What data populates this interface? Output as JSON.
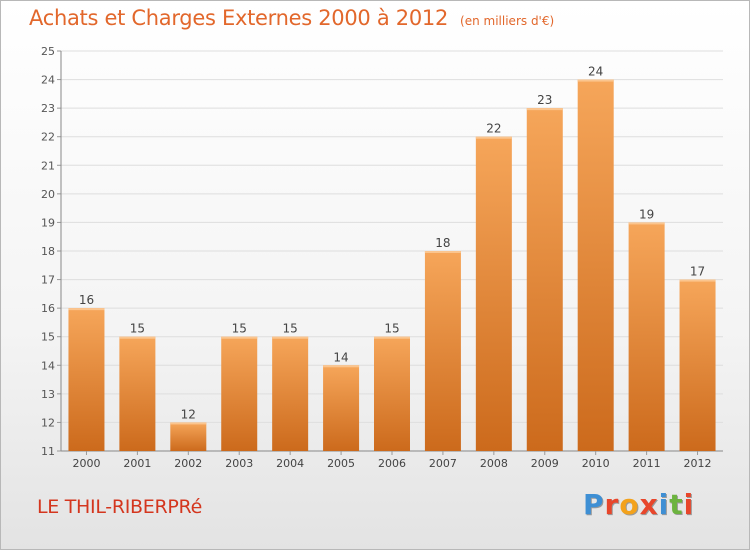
{
  "header": {
    "title": "Achats et Charges Externes 2000 à 2012",
    "unit": "(en milliers d'€)"
  },
  "footer": {
    "commune": "LE THIL-RIBERPRé"
  },
  "logo": {
    "text": "Proxiti",
    "colors": [
      "#3e8fd4",
      "#e8462b",
      "#f3a21c",
      "#e8462b",
      "#3e8fd4",
      "#6cb33f",
      "#e8462b"
    ]
  },
  "colors": {
    "title": "#e2672b",
    "commune": "#d4361e",
    "bar_top": "#f6a65a",
    "bar_bottom": "#cc6a1c"
  },
  "chart_data": {
    "type": "bar",
    "title": "Achats et Charges Externes 2000 à 2012",
    "unit": "(en milliers d'€)",
    "categories": [
      "2000",
      "2001",
      "2002",
      "2003",
      "2004",
      "2005",
      "2006",
      "2007",
      "2008",
      "2009",
      "2010",
      "2011",
      "2012"
    ],
    "values": [
      16,
      15,
      12,
      15,
      15,
      14,
      15,
      18,
      22,
      23,
      24,
      19,
      17
    ],
    "ylim": [
      11,
      25
    ],
    "yticks": [
      11,
      12,
      13,
      14,
      15,
      16,
      17,
      18,
      19,
      20,
      21,
      22,
      23,
      24,
      25
    ],
    "grid": true,
    "legend": "none"
  }
}
